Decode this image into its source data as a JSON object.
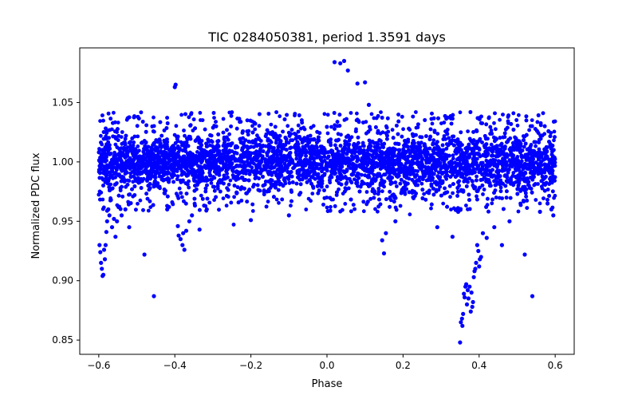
{
  "chart_data": {
    "type": "scatter",
    "title": "TIC 0284050381, period 1.3591 days",
    "xlabel": "Phase",
    "ylabel": "Normalized PDC flux",
    "xlim": [
      -0.65,
      0.65
    ],
    "ylim": [
      0.838,
      1.096
    ],
    "grid": false,
    "legend": "none",
    "marker_color": "#0000ff",
    "x_ticks": [
      -0.6,
      -0.4,
      -0.2,
      0.0,
      0.2,
      0.4,
      0.6
    ],
    "x_tick_labels": [
      "−0.6",
      "−0.4",
      "−0.2",
      "0.0",
      "0.2",
      "0.4",
      "0.6"
    ],
    "y_ticks": [
      0.85,
      0.9,
      0.95,
      1.0,
      1.05
    ],
    "y_tick_labels": [
      "0.85",
      "0.90",
      "0.95",
      "1.00",
      "1.05"
    ],
    "series": [
      {
        "x": [
          -0.598,
          -0.596,
          -0.594,
          -0.592,
          -0.59,
          -0.588,
          -0.586,
          -0.584,
          -0.582,
          -0.58,
          -0.578,
          -0.575,
          -0.572,
          -0.568,
          -0.565,
          -0.56,
          -0.556,
          -0.552,
          -0.548,
          -0.54,
          -0.53,
          -0.52,
          -0.48,
          -0.455,
          -0.42,
          -0.4,
          -0.398,
          -0.392,
          -0.39,
          -0.385,
          -0.38,
          -0.378,
          -0.375,
          -0.37,
          -0.362,
          -0.355,
          -0.335,
          -0.2,
          -0.1,
          0.02,
          0.035,
          0.045,
          0.055,
          0.08,
          0.1,
          0.11,
          0.145,
          0.15,
          0.155,
          0.18,
          0.29,
          0.33,
          0.345,
          0.35,
          0.352,
          0.355,
          0.356,
          0.358,
          0.36,
          0.362,
          0.364,
          0.366,
          0.368,
          0.37,
          0.372,
          0.375,
          0.378,
          0.38,
          0.382,
          0.384,
          0.386,
          0.388,
          0.39,
          0.392,
          0.395,
          0.398,
          0.4,
          0.402,
          0.405,
          0.41,
          0.42,
          0.44,
          0.46,
          0.48,
          0.52,
          0.54,
          0.56,
          0.58,
          0.59,
          0.595
        ],
        "y": [
          0.93,
          0.924,
          0.915,
          0.91,
          0.904,
          0.905,
          0.926,
          0.918,
          0.93,
          0.941,
          0.95,
          0.96,
          0.955,
          0.968,
          0.945,
          0.952,
          0.937,
          0.95,
          0.962,
          0.955,
          0.96,
          0.945,
          0.922,
          0.887,
          0.96,
          1.063,
          1.065,
          0.946,
          0.938,
          0.935,
          0.93,
          0.94,
          0.926,
          0.942,
          0.95,
          0.955,
          0.943,
          0.951,
          0.955,
          1.084,
          1.083,
          1.085,
          1.077,
          1.066,
          1.067,
          1.048,
          0.934,
          0.923,
          0.94,
          0.95,
          0.945,
          0.937,
          0.958,
          0.848,
          0.865,
          0.868,
          0.862,
          0.872,
          0.889,
          0.886,
          0.895,
          0.897,
          0.88,
          0.892,
          0.885,
          0.895,
          0.874,
          0.89,
          0.878,
          0.882,
          0.903,
          0.908,
          0.91,
          0.915,
          0.93,
          0.925,
          0.912,
          0.918,
          0.92,
          0.94,
          0.936,
          0.945,
          0.93,
          0.95,
          0.922,
          0.887,
          0.958,
          0.965,
          0.96,
          0.955
        ]
      }
    ],
    "dense_band": {
      "x_range": [
        -0.6,
        0.6
      ],
      "core_center": 1.0,
      "core_halfwidth": 0.03,
      "outer_halfwidth": 0.042
    }
  }
}
